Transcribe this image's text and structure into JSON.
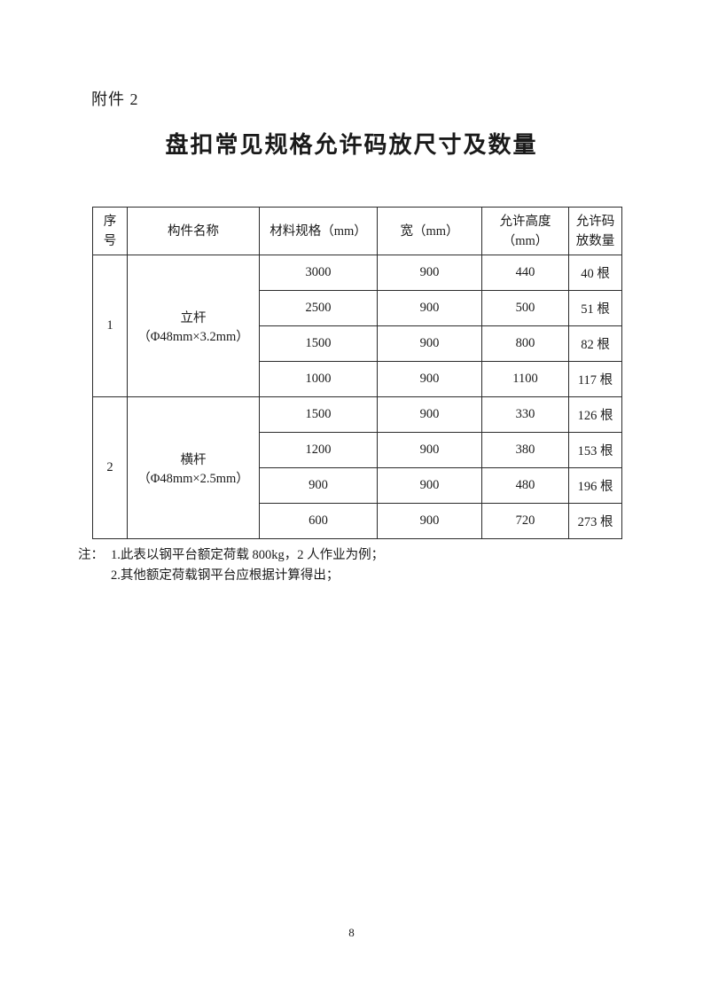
{
  "page": {
    "attachment_label": "附件 2",
    "title": "盘扣常见规格允许码放尺寸及数量",
    "page_number": "8",
    "colors": {
      "background": "#ffffff",
      "text": "#1a1a1a",
      "table_border": "#2b2b2b"
    }
  },
  "table": {
    "headers": {
      "index": "序\n号",
      "component": "构件名称",
      "material_spec": "材料规格（mm）",
      "width": "宽（mm）",
      "allowed_height": "允许高度\n（mm）",
      "allowed_qty": "允许码\n放数量"
    },
    "groups": [
      {
        "index": "1",
        "name": "立杆（Φ48mm×3.2mm）",
        "rows": [
          {
            "spec": "3000",
            "width": "900",
            "height": "440",
            "qty": "40 根"
          },
          {
            "spec": "2500",
            "width": "900",
            "height": "500",
            "qty": "51 根"
          },
          {
            "spec": "1500",
            "width": "900",
            "height": "800",
            "qty": "82 根"
          },
          {
            "spec": "1000",
            "width": "900",
            "height": "1100",
            "qty": "117 根"
          }
        ]
      },
      {
        "index": "2",
        "name": "横杆（Φ48mm×2.5mm）",
        "rows": [
          {
            "spec": "1500",
            "width": "900",
            "height": "330",
            "qty": "126 根"
          },
          {
            "spec": "1200",
            "width": "900",
            "height": "380",
            "qty": "153 根"
          },
          {
            "spec": "900",
            "width": "900",
            "height": "480",
            "qty": "196 根"
          },
          {
            "spec": "600",
            "width": "900",
            "height": "720",
            "qty": "273 根"
          }
        ]
      }
    ]
  },
  "notes": {
    "prefix": "注：",
    "items": [
      "1.此表以钢平台额定荷载 800kg，2 人作业为例；",
      "2.其他额定荷载钢平台应根据计算得出；"
    ]
  }
}
